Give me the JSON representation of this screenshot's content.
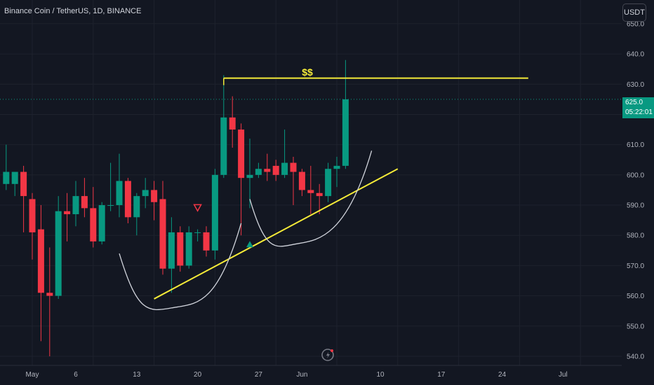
{
  "header": {
    "title": "Binance Coin / TetherUS, 1D, BINANCE"
  },
  "toolbar": {
    "currency_label": "USDT"
  },
  "last_price": {
    "value": "625.0",
    "countdown": "05:22:01"
  },
  "annotation": {
    "label": "$$"
  },
  "colors": {
    "up": "#089981",
    "down": "#f23645",
    "trendline": "#f5eb38",
    "curve": "#d1d4dc",
    "background": "#131722"
  },
  "chart_data": {
    "type": "candlestick",
    "title": "Binance Coin / TetherUS, 1D, BINANCE",
    "ylim": [
      538,
      650
    ],
    "y_ticks": [
      540,
      550,
      560,
      570,
      580,
      590,
      600,
      610,
      620,
      630,
      640,
      650
    ],
    "y_tick_labels": [
      "540.0",
      "550.0",
      "560.0",
      "570.0",
      "580.0",
      "590.0",
      "600.0",
      "610.0",
      "620.0",
      "630.0",
      "640.0",
      "650.0"
    ],
    "x_tick_labels": [
      {
        "label": "May",
        "day": 1
      },
      {
        "label": "6",
        "day": 6
      },
      {
        "label": "13",
        "day": 13
      },
      {
        "label": "20",
        "day": 20
      },
      {
        "label": "27",
        "day": 27
      },
      {
        "label": "Jun",
        "day": 32
      },
      {
        "label": "10",
        "day": 41
      },
      {
        "label": "17",
        "day": 48
      },
      {
        "label": "24",
        "day": 55
      },
      {
        "label": "Jul",
        "day": 62
      }
    ],
    "candles": [
      {
        "d": -2,
        "o": 597,
        "h": 610,
        "c": 601,
        "l": 595
      },
      {
        "d": -1,
        "o": 597,
        "h": 600,
        "c": 601,
        "l": 593
      },
      {
        "d": 0,
        "o": 601,
        "h": 603,
        "c": 593,
        "l": 581
      },
      {
        "d": 1,
        "o": 592,
        "h": 594,
        "c": 581,
        "l": 572
      },
      {
        "d": 2,
        "o": 582,
        "h": 590,
        "c": 561,
        "l": 545
      },
      {
        "d": 3,
        "o": 561,
        "h": 576,
        "c": 560,
        "l": 540
      },
      {
        "d": 4,
        "o": 560,
        "h": 593,
        "c": 588,
        "l": 559
      },
      {
        "d": 5,
        "o": 588,
        "h": 594,
        "c": 587,
        "l": 578
      },
      {
        "d": 6,
        "o": 587,
        "h": 598,
        "c": 593,
        "l": 583
      },
      {
        "d": 7,
        "o": 593,
        "h": 599,
        "c": 589,
        "l": 586
      },
      {
        "d": 8,
        "o": 589,
        "h": 596,
        "c": 578,
        "l": 576
      },
      {
        "d": 9,
        "o": 578,
        "h": 591,
        "c": 590,
        "l": 577
      },
      {
        "d": 10,
        "o": 590,
        "h": 604,
        "c": 590,
        "l": 588
      },
      {
        "d": 11,
        "o": 590,
        "h": 607,
        "c": 598,
        "l": 586
      },
      {
        "d": 12,
        "o": 598,
        "h": 599,
        "c": 586,
        "l": 584
      },
      {
        "d": 13,
        "o": 586,
        "h": 594,
        "c": 593,
        "l": 580
      },
      {
        "d": 14,
        "o": 593,
        "h": 599,
        "c": 595,
        "l": 589
      },
      {
        "d": 15,
        "o": 595,
        "h": 598,
        "c": 591,
        "l": 585
      },
      {
        "d": 16,
        "o": 592,
        "h": 598,
        "c": 569,
        "l": 567
      },
      {
        "d": 17,
        "o": 569,
        "h": 586,
        "c": 581,
        "l": 561
      },
      {
        "d": 18,
        "o": 581,
        "h": 583,
        "c": 570,
        "l": 568
      },
      {
        "d": 19,
        "o": 570,
        "h": 583,
        "c": 581,
        "l": 569
      },
      {
        "d": 20,
        "o": 581,
        "h": 582,
        "c": 581,
        "l": 578
      },
      {
        "d": 21,
        "o": 581,
        "h": 583,
        "c": 575,
        "l": 573
      },
      {
        "d": 22,
        "o": 575,
        "h": 602,
        "c": 600,
        "l": 572
      },
      {
        "d": 23,
        "o": 600,
        "h": 633,
        "c": 619,
        "l": 599
      },
      {
        "d": 24,
        "o": 619,
        "h": 626,
        "c": 615,
        "l": 609
      },
      {
        "d": 25,
        "o": 615,
        "h": 617,
        "c": 599,
        "l": 580
      },
      {
        "d": 26,
        "o": 599,
        "h": 612,
        "c": 600,
        "l": 589
      },
      {
        "d": 27,
        "o": 600,
        "h": 604,
        "c": 602,
        "l": 599
      },
      {
        "d": 28,
        "o": 602,
        "h": 607,
        "c": 601,
        "l": 598
      },
      {
        "d": 29,
        "o": 603,
        "h": 605,
        "c": 600,
        "l": 598
      },
      {
        "d": 30,
        "o": 600,
        "h": 615,
        "c": 604,
        "l": 599
      },
      {
        "d": 31,
        "o": 604,
        "h": 606,
        "c": 601,
        "l": 590
      },
      {
        "d": 32,
        "o": 601,
        "h": 602,
        "c": 595,
        "l": 593
      },
      {
        "d": 33,
        "o": 595,
        "h": 603,
        "c": 594,
        "l": 587
      },
      {
        "d": 34,
        "o": 594,
        "h": 597,
        "c": 593,
        "l": 587
      },
      {
        "d": 35,
        "o": 593,
        "h": 604,
        "c": 602,
        "l": 591
      },
      {
        "d": 36,
        "o": 602,
        "h": 606,
        "c": 603,
        "l": 596
      },
      {
        "d": 37,
        "o": 603,
        "h": 638,
        "c": 625,
        "l": 602
      }
    ],
    "resistance": {
      "from": {
        "d": 23,
        "y": 632
      },
      "to": {
        "d": 58,
        "y": 632
      }
    },
    "trendline": {
      "from": {
        "d": 15,
        "y": 559
      },
      "to": {
        "d": 43,
        "y": 602
      }
    },
    "cup_left": [
      {
        "d": 11,
        "y": 574
      },
      {
        "d": 17,
        "y": 556
      },
      {
        "d": 25,
        "y": 584
      }
    ],
    "cup_right": [
      {
        "d": 26,
        "y": 592
      },
      {
        "d": 31,
        "y": 577
      },
      {
        "d": 40,
        "y": 608
      }
    ],
    "marker_down": {
      "d": 20,
      "y": 589
    },
    "marker_up": {
      "d": 26,
      "y": 577
    },
    "current_price": 625
  }
}
